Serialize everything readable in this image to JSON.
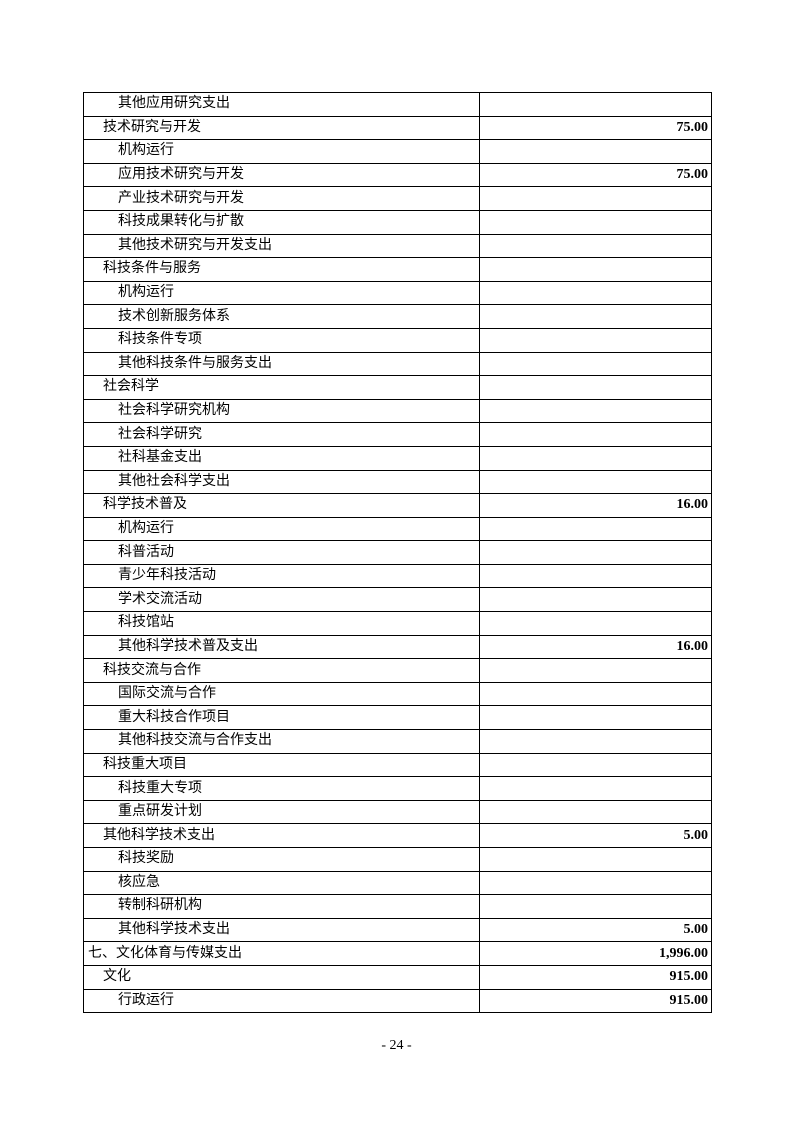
{
  "page": {
    "page_number": "- 24 -"
  },
  "colors": {
    "background": "#ffffff",
    "text": "#000000",
    "table_border": "#000000"
  },
  "table": {
    "rows": [
      {
        "label": "其他应用研究支出",
        "indent": 2,
        "value": ""
      },
      {
        "label": "技术研究与开发",
        "indent": 1,
        "value": "75.00"
      },
      {
        "label": "机构运行",
        "indent": 2,
        "value": ""
      },
      {
        "label": "应用技术研究与开发",
        "indent": 2,
        "value": "75.00"
      },
      {
        "label": "产业技术研究与开发",
        "indent": 2,
        "value": ""
      },
      {
        "label": "科技成果转化与扩散",
        "indent": 2,
        "value": ""
      },
      {
        "label": "其他技术研究与开发支出",
        "indent": 2,
        "value": ""
      },
      {
        "label": "科技条件与服务",
        "indent": 1,
        "value": ""
      },
      {
        "label": "机构运行",
        "indent": 2,
        "value": ""
      },
      {
        "label": "技术创新服务体系",
        "indent": 2,
        "value": ""
      },
      {
        "label": "科技条件专项",
        "indent": 2,
        "value": ""
      },
      {
        "label": "其他科技条件与服务支出",
        "indent": 2,
        "value": ""
      },
      {
        "label": "社会科学",
        "indent": 1,
        "value": ""
      },
      {
        "label": "社会科学研究机构",
        "indent": 2,
        "value": ""
      },
      {
        "label": "社会科学研究",
        "indent": 2,
        "value": ""
      },
      {
        "label": "社科基金支出",
        "indent": 2,
        "value": ""
      },
      {
        "label": "其他社会科学支出",
        "indent": 2,
        "value": ""
      },
      {
        "label": "科学技术普及",
        "indent": 1,
        "value": "16.00"
      },
      {
        "label": "机构运行",
        "indent": 2,
        "value": ""
      },
      {
        "label": "科普活动",
        "indent": 2,
        "value": ""
      },
      {
        "label": "青少年科技活动",
        "indent": 2,
        "value": ""
      },
      {
        "label": "学术交流活动",
        "indent": 2,
        "value": ""
      },
      {
        "label": "科技馆站",
        "indent": 2,
        "value": ""
      },
      {
        "label": "其他科学技术普及支出",
        "indent": 2,
        "value": "16.00"
      },
      {
        "label": "科技交流与合作",
        "indent": 1,
        "value": ""
      },
      {
        "label": "国际交流与合作",
        "indent": 2,
        "value": ""
      },
      {
        "label": "重大科技合作项目",
        "indent": 2,
        "value": ""
      },
      {
        "label": "其他科技交流与合作支出",
        "indent": 2,
        "value": ""
      },
      {
        "label": "科技重大项目",
        "indent": 1,
        "value": ""
      },
      {
        "label": "科技重大专项",
        "indent": 2,
        "value": ""
      },
      {
        "label": "重点研发计划",
        "indent": 2,
        "value": ""
      },
      {
        "label": "其他科学技术支出",
        "indent": 1,
        "value": "5.00"
      },
      {
        "label": "科技奖励",
        "indent": 2,
        "value": ""
      },
      {
        "label": "核应急",
        "indent": 2,
        "value": ""
      },
      {
        "label": "转制科研机构",
        "indent": 2,
        "value": ""
      },
      {
        "label": "其他科学技术支出",
        "indent": 2,
        "value": "5.00"
      },
      {
        "label": "七、文化体育与传媒支出",
        "indent": 0,
        "value": "1,996.00"
      },
      {
        "label": "文化",
        "indent": 1,
        "value": "915.00"
      },
      {
        "label": "行政运行",
        "indent": 2,
        "value": "915.00"
      }
    ]
  }
}
